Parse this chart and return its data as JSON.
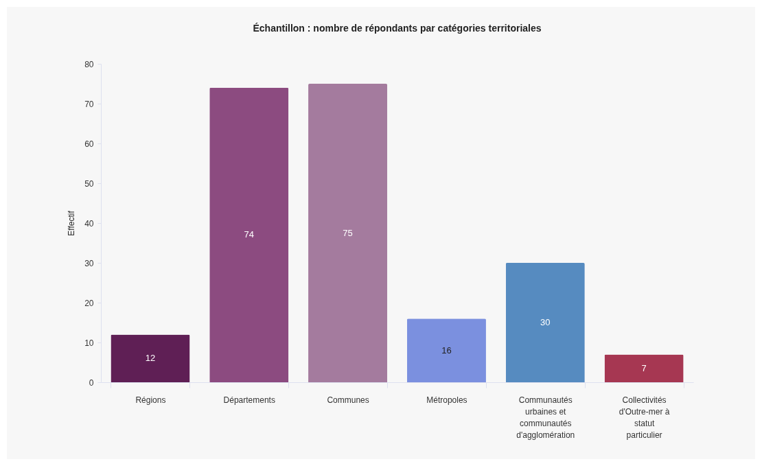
{
  "chart_data": {
    "type": "bar",
    "title": "Échantillon : nombre de répondants par catégories territoriales",
    "ylabel": "Effectif",
    "categories": [
      "Régions",
      "Départements",
      "Communes",
      "Métropoles",
      "Communautés urbaines et communautés d'agglomération",
      "Collectivités d'Outre-mer à statut particulier"
    ],
    "values": [
      12,
      74,
      75,
      16,
      30,
      7
    ],
    "colors": [
      "#5f1f55",
      "#8c4b80",
      "#a47b9e",
      "#7b90df",
      "#568bc0",
      "#a63752"
    ],
    "ylim": [
      0,
      80
    ],
    "yticks": [
      0,
      10,
      20,
      30,
      40,
      50,
      60,
      70,
      80
    ],
    "grid": false,
    "data_labels": true
  }
}
